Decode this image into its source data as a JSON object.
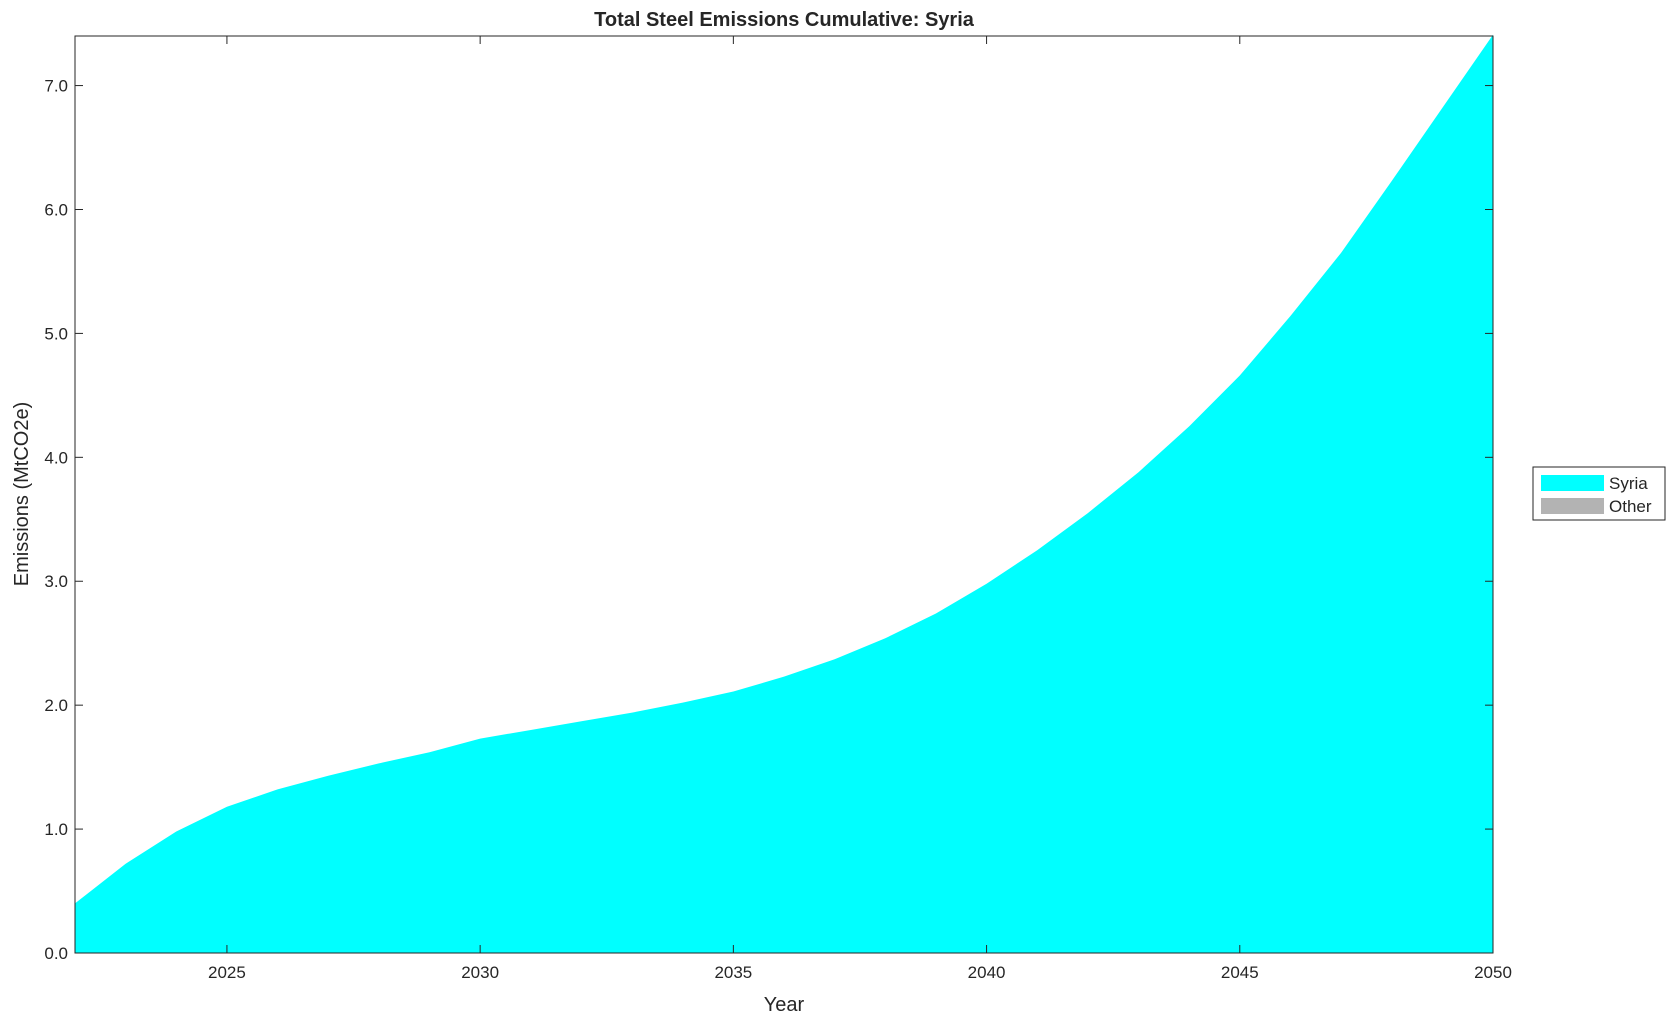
{
  "chart_data": {
    "type": "area",
    "title": "Total Steel Emissions Cumulative: Syria",
    "xlabel": "Year",
    "ylabel": "Emissions (MtCO2e)",
    "xlim": [
      2022,
      2050
    ],
    "ylim": [
      0,
      7.4
    ],
    "xticks": [
      2025,
      2030,
      2035,
      2040,
      2045,
      2050
    ],
    "yticks": [
      0,
      1,
      2,
      3,
      4,
      5,
      6,
      7
    ],
    "ytick_labels": [
      "0.0",
      "1.0",
      "2.0",
      "3.0",
      "4.0",
      "5.0",
      "6.0",
      "7.0"
    ],
    "grid": false,
    "legend_position": "right",
    "x": [
      2022,
      2023,
      2024,
      2025,
      2026,
      2027,
      2028,
      2029,
      2030,
      2031,
      2032,
      2033,
      2034,
      2035,
      2036,
      2037,
      2038,
      2039,
      2040,
      2041,
      2042,
      2043,
      2044,
      2045,
      2046,
      2047,
      2048,
      2049,
      2050
    ],
    "series": [
      {
        "name": "Syria",
        "color": "#00FFFF",
        "values": [
          0.4,
          0.72,
          0.98,
          1.18,
          1.32,
          1.43,
          1.53,
          1.62,
          1.73,
          1.8,
          1.87,
          1.94,
          2.02,
          2.11,
          2.23,
          2.37,
          2.54,
          2.74,
          2.98,
          3.25,
          3.55,
          3.88,
          4.25,
          4.66,
          5.14,
          5.65,
          6.23,
          6.82,
          7.41
        ]
      },
      {
        "name": "Other",
        "color": "#B3B3B3",
        "values": [
          0,
          0,
          0,
          0,
          0,
          0,
          0,
          0,
          0,
          0,
          0,
          0,
          0,
          0,
          0,
          0,
          0,
          0,
          0,
          0,
          0,
          0,
          0,
          0,
          0,
          0,
          0,
          0,
          0
        ]
      }
    ]
  }
}
